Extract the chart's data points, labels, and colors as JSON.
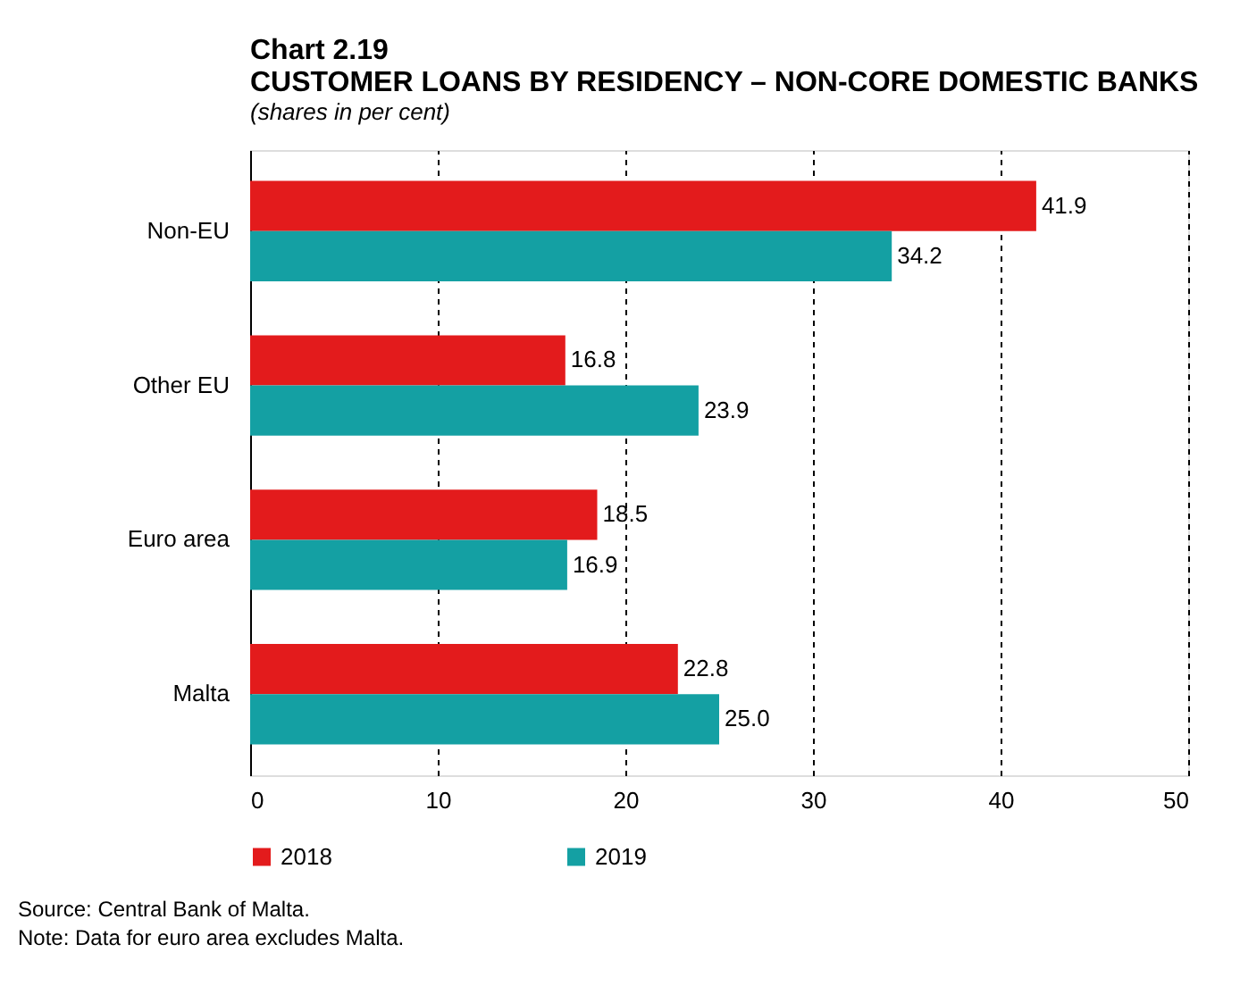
{
  "chart_data": {
    "type": "bar",
    "orientation": "horizontal",
    "title": [
      "Chart 2.19",
      "CUSTOMER LOANS BY RESIDENCY – NON-CORE DOMESTIC BANKS"
    ],
    "subtitle": "(shares in per cent)",
    "categories": [
      "Non-EU",
      "Other EU",
      "Euro area",
      "Malta"
    ],
    "series": [
      {
        "name": "2018",
        "color": "#e31b1c",
        "values": [
          41.9,
          16.8,
          18.5,
          22.8
        ],
        "value_labels": [
          "41.9",
          "16.8",
          "18.5",
          "22.8"
        ]
      },
      {
        "name": "2019",
        "color": "#14a0a3",
        "values": [
          34.2,
          23.9,
          16.9,
          25.0
        ],
        "value_labels": [
          "34.2",
          "23.9",
          "16.9",
          "25.0"
        ]
      }
    ],
    "xlim": [
      0,
      50
    ],
    "xticks": [
      0,
      10,
      20,
      30,
      40,
      50
    ],
    "grid": "x",
    "legend": "bottom",
    "annotations": [
      "Source: Central Bank of Malta.",
      "Note: Data for euro area excludes Malta."
    ]
  }
}
